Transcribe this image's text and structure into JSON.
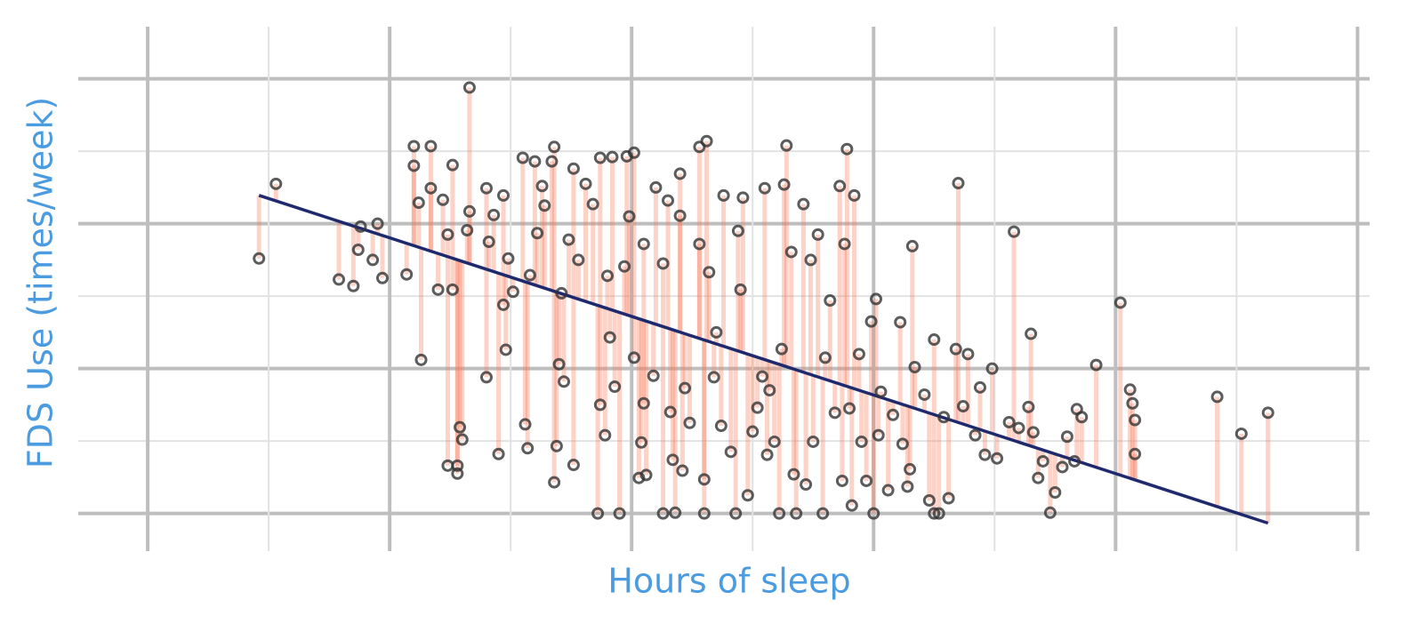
{
  "chart_data": {
    "type": "scatter",
    "x_label": "Hours of sleep",
    "y_label": "FDS Use (times/week)",
    "xlim": [
      3.713,
      9.05
    ],
    "ylim": [
      -0.52,
      6.72
    ],
    "xticks": [
      4,
      5,
      6,
      7,
      8,
      9
    ],
    "xminor": [
      4.5,
      5.5,
      6.5,
      7.5,
      8.5
    ],
    "yticks": [
      0,
      2,
      4,
      6
    ],
    "yminor": [
      1,
      3,
      5
    ],
    "grid": true,
    "point_color": "#333333",
    "residual_color": "#fa7f5e",
    "fit_color": "#1f2a6e",
    "fit": {
      "intercept": 9.23,
      "slope": -1.085
    },
    "x": [
      4.46,
      4.53,
      4.79,
      4.85,
      4.87,
      4.88,
      4.93,
      4.95,
      4.97,
      5.07,
      5.1,
      5.1,
      5.12,
      5.13,
      5.17,
      5.17,
      5.2,
      5.22,
      5.24,
      5.24,
      5.26,
      5.26,
      5.28,
      5.28,
      5.29,
      5.3,
      5.32,
      5.33,
      5.33,
      5.4,
      5.4,
      5.41,
      5.43,
      5.45,
      5.47,
      5.47,
      5.48,
      5.49,
      5.51,
      5.55,
      5.56,
      5.57,
      5.58,
      5.6,
      5.61,
      5.63,
      5.64,
      5.67,
      5.68,
      5.68,
      5.69,
      5.7,
      5.71,
      5.72,
      5.74,
      5.76,
      5.76,
      5.78,
      5.81,
      5.84,
      5.86,
      5.87,
      5.87,
      5.89,
      5.9,
      5.91,
      5.92,
      5.93,
      5.95,
      5.97,
      5.98,
      5.99,
      6.01,
      6.01,
      6.03,
      6.04,
      6.05,
      6.05,
      6.06,
      6.09,
      6.1,
      6.13,
      6.13,
      6.15,
      6.16,
      6.17,
      6.18,
      6.2,
      6.2,
      6.21,
      6.22,
      6.24,
      6.28,
      6.28,
      6.3,
      6.3,
      6.31,
      6.32,
      6.34,
      6.35,
      6.37,
      6.38,
      6.41,
      6.43,
      6.44,
      6.45,
      6.46,
      6.48,
      6.5,
      6.52,
      6.54,
      6.55,
      6.56,
      6.57,
      6.59,
      6.61,
      6.62,
      6.63,
      6.64,
      6.66,
      6.67,
      6.68,
      6.71,
      6.72,
      6.74,
      6.75,
      6.77,
      6.79,
      6.8,
      6.82,
      6.84,
      6.86,
      6.87,
      6.88,
      6.89,
      6.9,
      6.91,
      6.92,
      6.94,
      6.95,
      6.97,
      6.99,
      7.0,
      7.01,
      7.02,
      7.03,
      7.06,
      7.08,
      7.11,
      7.12,
      7.14,
      7.15,
      7.16,
      7.17,
      7.21,
      7.23,
      7.25,
      7.25,
      7.27,
      7.29,
      7.31,
      7.34,
      7.35,
      7.37,
      7.39,
      7.42,
      7.44,
      7.46,
      7.49,
      7.51,
      7.56,
      7.58,
      7.6,
      7.64,
      7.65,
      7.66,
      7.68,
      7.7,
      7.73,
      7.75,
      7.78,
      7.8,
      7.83,
      7.84,
      7.86,
      7.92,
      8.02,
      8.06,
      8.07,
      8.08,
      8.08,
      8.42,
      8.52,
      8.63
    ],
    "values": [
      3.52,
      4.55,
      3.23,
      3.14,
      3.64,
      3.96,
      3.5,
      4.0,
      3.25,
      3.3,
      5.07,
      4.8,
      4.29,
      2.12,
      5.07,
      4.49,
      3.09,
      4.33,
      0.66,
      3.85,
      4.81,
      3.09,
      0.66,
      0.55,
      1.19,
      1.02,
      3.91,
      5.88,
      4.17,
      1.88,
      4.49,
      3.75,
      4.12,
      0.82,
      4.39,
      2.88,
      2.26,
      3.52,
      3.06,
      4.91,
      1.23,
      0.9,
      3.29,
      4.86,
      3.87,
      4.52,
      4.25,
      4.86,
      5.06,
      0.43,
      0.93,
      2.06,
      3.04,
      1.82,
      3.78,
      4.76,
      0.67,
      3.5,
      4.55,
      4.27,
      0.0,
      1.5,
      4.91,
      1.08,
      3.28,
      2.43,
      4.92,
      1.75,
      0.0,
      3.41,
      4.93,
      4.1,
      4.98,
      2.15,
      0.49,
      0.98,
      1.52,
      3.72,
      0.53,
      1.9,
      4.5,
      0.0,
      3.45,
      4.32,
      1.4,
      0.74,
      0.01,
      4.11,
      4.69,
      0.59,
      1.73,
      1.25,
      5.06,
      3.72,
      0.47,
      0.0,
      5.14,
      3.33,
      1.88,
      2.5,
      1.21,
      4.39,
      0.85,
      0.0,
      3.9,
      3.09,
      4.36,
      0.25,
      1.13,
      1.46,
      1.89,
      4.49,
      0.81,
      1.7,
      0.99,
      0.0,
      2.27,
      4.54,
      5.08,
      3.61,
      0.54,
      0.0,
      4.27,
      0.4,
      3.5,
      0.99,
      3.85,
      0.0,
      2.15,
      2.94,
      1.39,
      4.52,
      0.45,
      3.72,
      5.03,
      1.45,
      0.11,
      4.39,
      2.2,
      0.99,
      0.45,
      2.65,
      0.0,
      2.96,
      1.08,
      1.68,
      0.32,
      1.36,
      2.64,
      0.96,
      0.37,
      0.61,
      3.69,
      2.02,
      1.64,
      0.18,
      2.4,
      0.0,
      0.0,
      1.33,
      0.21,
      2.27,
      4.56,
      1.48,
      2.2,
      1.08,
      1.74,
      0.81,
      2.0,
      0.76,
      1.26,
      3.89,
      1.18,
      1.47,
      2.48,
      1.12,
      0.49,
      0.72,
      0.01,
      0.29,
      0.64,
      1.06,
      0.72,
      1.44,
      1.33,
      2.05,
      2.91,
      1.71,
      1.52,
      0.82,
      1.29,
      1.61,
      1.1,
      1.39
    ]
  }
}
